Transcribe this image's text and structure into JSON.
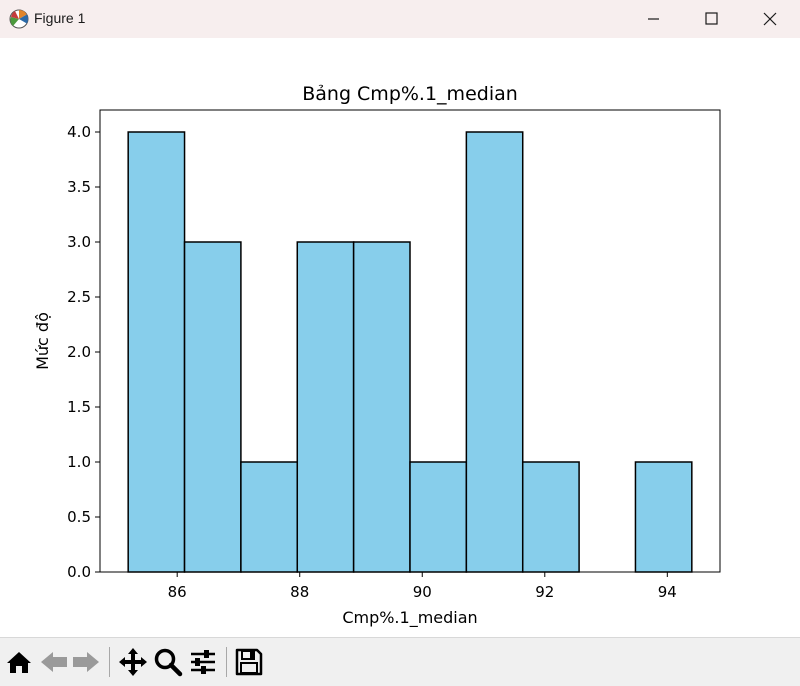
{
  "window": {
    "title": "Figure 1",
    "controls": {
      "minimize": "minimize-icon",
      "maximize": "maximize-icon",
      "close": "close-icon"
    }
  },
  "toolbar": {
    "items": [
      "home-icon",
      "back-icon",
      "forward-icon",
      "pan-icon",
      "zoom-icon",
      "configure-subplots-icon",
      "save-icon"
    ]
  },
  "colors": {
    "bar_fill": "#87ceeb",
    "bar_edge": "#000000",
    "titlebar": "#f7eeee",
    "toolbar": "#f0f0f0"
  },
  "chart_data": {
    "type": "bar",
    "title": "Bảng Cmp%.1_median",
    "xlabel": "Cmp%.1_median",
    "ylabel": "Mức độ",
    "bins": [
      {
        "start": 85.2,
        "end": 86.12,
        "count": 4
      },
      {
        "start": 86.12,
        "end": 87.04,
        "count": 3
      },
      {
        "start": 87.04,
        "end": 87.96,
        "count": 1
      },
      {
        "start": 87.96,
        "end": 88.88,
        "count": 3
      },
      {
        "start": 88.88,
        "end": 89.8,
        "count": 3
      },
      {
        "start": 89.8,
        "end": 90.72,
        "count": 1
      },
      {
        "start": 90.72,
        "end": 91.64,
        "count": 4
      },
      {
        "start": 91.64,
        "end": 92.56,
        "count": 1
      },
      {
        "start": 92.56,
        "end": 93.48,
        "count": 0
      },
      {
        "start": 93.48,
        "end": 94.4,
        "count": 1
      }
    ],
    "xlim": [
      84.74,
      94.86
    ],
    "ylim": [
      0,
      4.2
    ],
    "xticks": [
      86,
      88,
      90,
      92,
      94
    ],
    "yticks": [
      0.0,
      0.5,
      1.0,
      1.5,
      2.0,
      2.5,
      3.0,
      3.5,
      4.0
    ],
    "ytick_labels": [
      "0.0",
      "0.5",
      "1.0",
      "1.5",
      "2.0",
      "2.5",
      "3.0",
      "3.5",
      "4.0"
    ],
    "grid": false
  }
}
